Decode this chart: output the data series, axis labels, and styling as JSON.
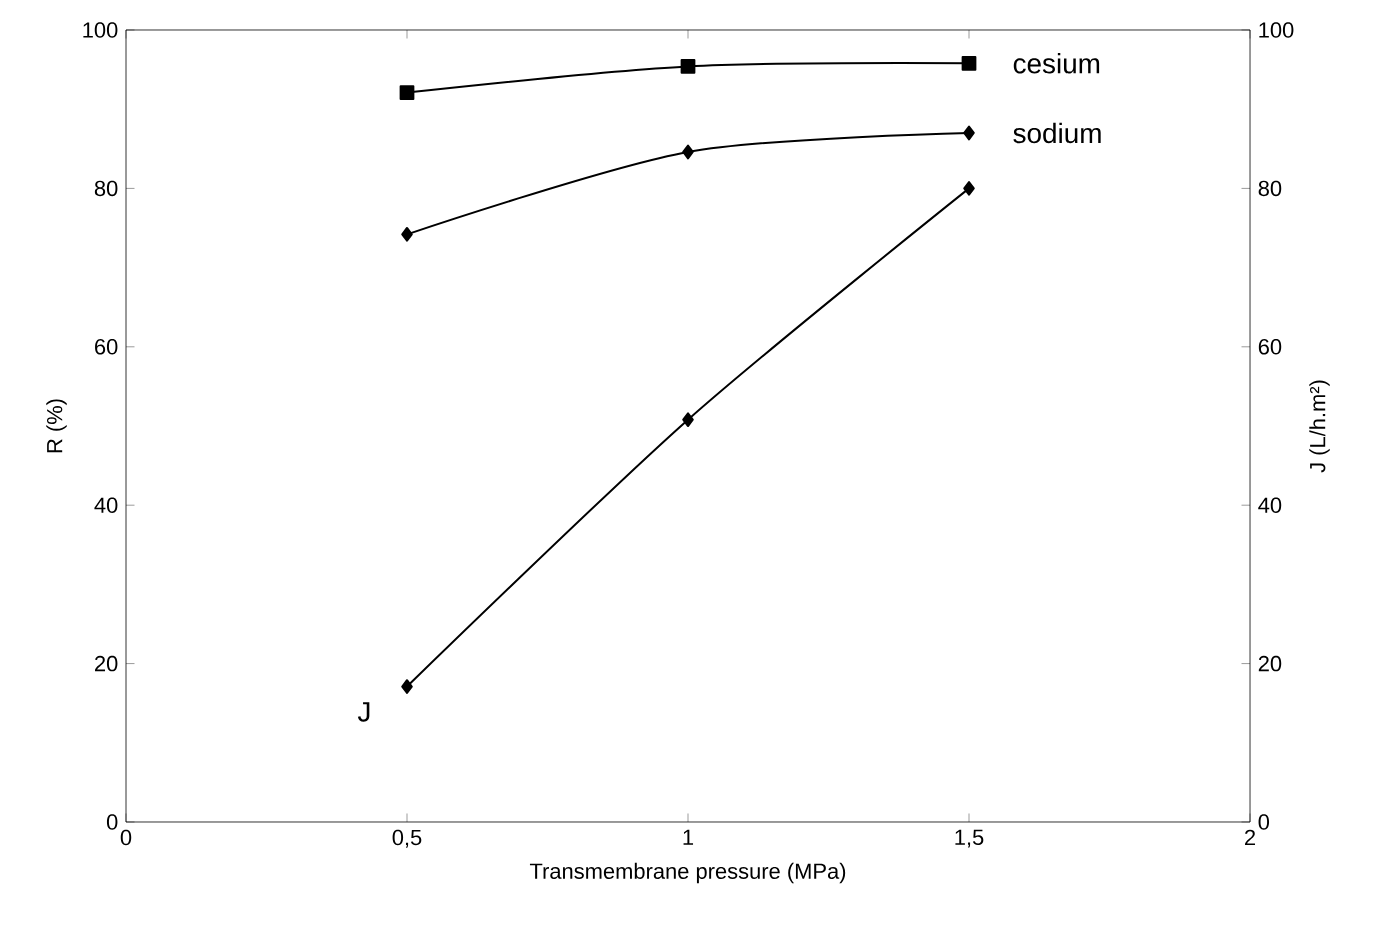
{
  "chart_data": {
    "type": "line",
    "xlabel": "Transmembrane pressure (MPa)",
    "ylabel": "R (%)",
    "y2label": "J (L/h.m²)",
    "x": [
      0.5,
      1,
      1.5
    ],
    "series": [
      {
        "name": "cesium",
        "color": "#000000",
        "marker": "square",
        "values": [
          92.1,
          95.4,
          95.8
        ]
      },
      {
        "name": "sodium",
        "color": "#000000",
        "marker": "diamond",
        "values": [
          74.2,
          84.6,
          87.0
        ]
      },
      {
        "name": "J",
        "color": "#000000",
        "marker": "diamond",
        "axis": "y2",
        "values": [
          17.1,
          50.8,
          80.0
        ]
      }
    ],
    "xlim": [
      0,
      2
    ],
    "xticks": [
      0,
      {
        "value": 0.5,
        "label": "0,5"
      },
      1,
      {
        "value": 1.5,
        "label": "1,5"
      },
      2
    ],
    "ylim": [
      0,
      100
    ],
    "yticks": [
      0,
      20,
      40,
      60,
      80,
      100
    ],
    "y2lim": [
      0,
      100
    ],
    "y2ticks": [
      0,
      20,
      40,
      60,
      80,
      100
    ],
    "grid": false,
    "legend": false
  }
}
